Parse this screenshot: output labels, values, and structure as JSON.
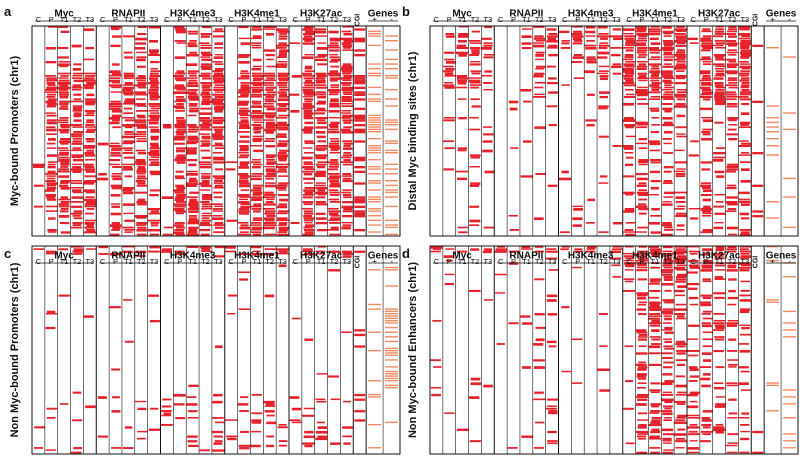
{
  "colors": {
    "signal": "#e8202a",
    "gene_track": "#f08a60",
    "frame": "#111111",
    "background": "#ffffff"
  },
  "figure": {
    "panels": [
      {
        "letter": "a",
        "row_label": "Myc-bound Promoters (chr1)",
        "profile": "dense"
      },
      {
        "letter": "b",
        "row_label": "Distal Myc binding  sites (chr1)",
        "profile": "distal"
      },
      {
        "letter": "c",
        "row_label": "Non Myc-bound Promoters (chr1)",
        "profile": "sparse"
      },
      {
        "letter": "d",
        "row_label": "Non Myc-bound Enhancers (chr1)",
        "profile": "enhancer"
      }
    ],
    "groups": [
      "Myc",
      "RNAPII",
      "H3K4me3",
      "H3K4me1",
      "H3K27ac"
    ],
    "samples": [
      "C",
      "P",
      "T1",
      "T2",
      "T3"
    ],
    "cgi_label": "CGI",
    "genes": {
      "label": "Genes",
      "strands": [
        "+",
        "-"
      ]
    }
  }
}
